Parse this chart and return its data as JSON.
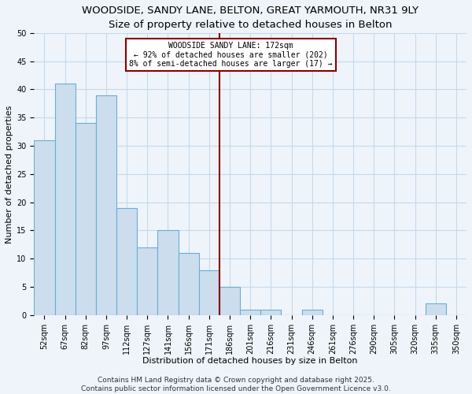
{
  "title": "WOODSIDE, SANDY LANE, BELTON, GREAT YARMOUTH, NR31 9LY",
  "subtitle": "Size of property relative to detached houses in Belton",
  "xlabel": "Distribution of detached houses by size in Belton",
  "ylabel": "Number of detached properties",
  "bar_labels": [
    "52sqm",
    "67sqm",
    "82sqm",
    "97sqm",
    "112sqm",
    "127sqm",
    "141sqm",
    "156sqm",
    "171sqm",
    "186sqm",
    "201sqm",
    "216sqm",
    "231sqm",
    "246sqm",
    "261sqm",
    "276sqm",
    "290sqm",
    "305sqm",
    "320sqm",
    "335sqm",
    "350sqm"
  ],
  "bar_heights": [
    31,
    41,
    34,
    39,
    19,
    12,
    15,
    11,
    8,
    5,
    1,
    1,
    0,
    1,
    0,
    0,
    0,
    0,
    0,
    2,
    0
  ],
  "bar_color": "#ccdded",
  "bar_edgecolor": "#6aaed6",
  "bar_linewidth": 0.8,
  "vline_color": "#8b0000",
  "annotation_title": "WOODSIDE SANDY LANE: 172sqm",
  "annotation_line2": "← 92% of detached houses are smaller (202)",
  "annotation_line3": "8% of semi-detached houses are larger (17) →",
  "annotation_box_edgecolor": "#8b0000",
  "annotation_box_facecolor": "#ffffff",
  "ylim": [
    0,
    50
  ],
  "yticks": [
    0,
    5,
    10,
    15,
    20,
    25,
    30,
    35,
    40,
    45,
    50
  ],
  "grid_color": "#c8d9ea",
  "background_color": "#eef4fa",
  "footnote1": "Contains HM Land Registry data © Crown copyright and database right 2025.",
  "footnote2": "Contains public sector information licensed under the Open Government Licence v3.0.",
  "title_fontsize": 9.5,
  "subtitle_fontsize": 8.5,
  "axis_label_fontsize": 8,
  "tick_fontsize": 7,
  "annotation_fontsize": 7,
  "footnote_fontsize": 6.5
}
